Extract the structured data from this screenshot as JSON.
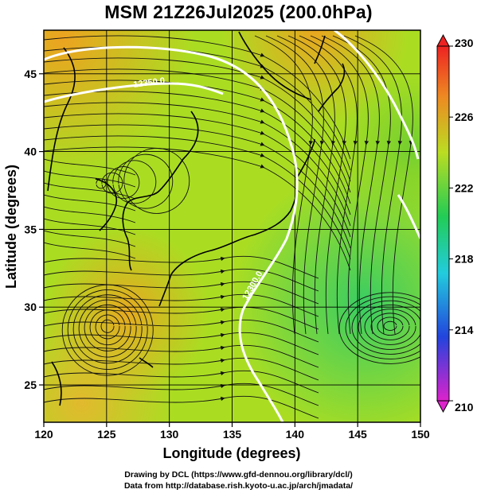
{
  "title": "MSM 21Z26Jul2025 (200.0hPa)",
  "axes": {
    "xlabel": "Longitude (degrees)",
    "ylabel": "Latitude (degrees)",
    "xticks": [
      "120",
      "125",
      "130",
      "135",
      "140",
      "145",
      "150"
    ],
    "yticks": [
      "25",
      "30",
      "35",
      "40",
      "45"
    ],
    "xlim": [
      120,
      150
    ],
    "ylim": [
      22.6,
      47.8
    ],
    "grid": true
  },
  "colorbar": {
    "ticks": [
      "230",
      "226",
      "222",
      "218",
      "214",
      "210"
    ],
    "range": [
      210,
      230
    ],
    "colors": [
      "#dd22cc",
      "#2244dd",
      "#22ccdd",
      "#22cc55",
      "#bbdd22",
      "#ee8822",
      "#ee2222"
    ]
  },
  "contours": [
    {
      "label": "12350.0",
      "value": 12350.0
    },
    {
      "label": "12300.0",
      "value": 12300.0
    }
  ],
  "footer": {
    "line1": "Drawing by DCL (https://www.gfd-dennou.org/library/dcl/)",
    "line2": "Data from http://database.rish.kyoto-u.ac.jp/arch/jmadata/"
  }
}
